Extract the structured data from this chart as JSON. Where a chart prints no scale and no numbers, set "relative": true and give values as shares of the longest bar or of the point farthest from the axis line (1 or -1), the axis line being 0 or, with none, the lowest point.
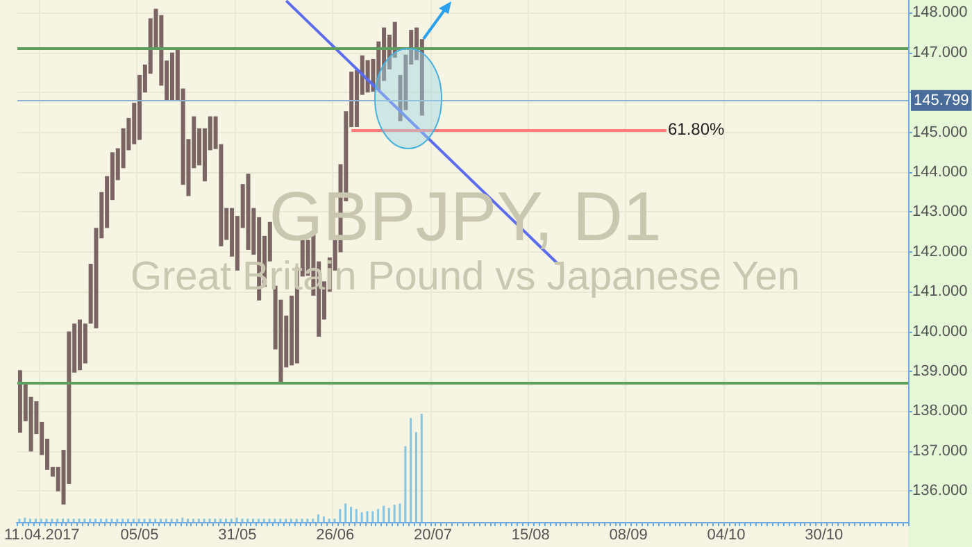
{
  "chart_data": [
    {
      "type": "bar",
      "title": "GBPJPY, D1",
      "subtitle": "Great Britain Pound vs Japanese Yen",
      "categories": [
        null,
        null,
        null,
        null,
        "11.04.2017",
        null,
        null,
        null,
        null,
        null,
        null,
        null,
        null,
        null,
        null,
        null,
        null,
        null,
        null,
        null,
        null,
        null,
        "05/05",
        null,
        null,
        null,
        null,
        null,
        null,
        null,
        null,
        null,
        null,
        null,
        null,
        null,
        null,
        null,
        null,
        null,
        "31/05",
        null,
        null,
        null,
        null,
        null,
        null,
        null,
        null,
        null,
        null,
        null,
        null,
        null,
        null,
        null,
        null,
        null,
        "26/06",
        null,
        null,
        null,
        null,
        null,
        null,
        null,
        null,
        null,
        null,
        null,
        null,
        null,
        null,
        null,
        null,
        null,
        "20/07",
        null,
        null,
        null,
        null,
        null,
        null,
        null,
        null,
        null,
        null,
        null,
        null,
        null,
        null,
        null,
        null,
        null,
        "15/08",
        null,
        null,
        null,
        null,
        null,
        null,
        null,
        null,
        null,
        null,
        null,
        null,
        null,
        null,
        null,
        null,
        null,
        "08/09",
        null,
        null,
        null,
        null,
        null,
        null,
        null,
        null,
        null,
        null,
        null,
        null,
        null,
        null,
        null,
        null,
        null,
        "04/10",
        null,
        null,
        null,
        null,
        null,
        null,
        null,
        null,
        null,
        null,
        null,
        null,
        null,
        null,
        null,
        null,
        null,
        "30/10",
        null,
        null,
        null,
        null,
        null,
        null,
        null,
        null,
        null,
        null,
        null,
        null,
        null,
        null,
        null
      ],
      "series": [
        {
          "color": "#7a6464",
          "base": [
            137.46,
            137.75,
            136.99,
            137.43,
            136.9,
            136.53,
            136.36,
            135.99,
            135.66,
            136.18,
            138.97,
            139.03,
            139.2,
            140.2,
            140.08,
            142.34,
            142.6,
            143.3,
            143.8,
            144.1,
            144.55,
            144.7,
            144.81,
            146.0,
            146.47,
            147.1,
            146.17,
            145.8,
            145.8,
            145.8,
            143.68,
            143.4,
            144.1,
            144.17,
            143.77,
            144.55,
            144.58,
            142.14,
            142.3,
            141.88,
            141.53,
            142.6,
            142.05,
            141.93,
            140.78,
            141.12,
            141.76,
            139.55,
            138.7,
            139.1,
            139.15,
            139.2,
            141.38,
            141.4,
            140.9,
            139.87,
            140.3,
            141.0,
            141.53,
            141.99,
            143.27,
            145.13,
            145.13,
            145.94,
            146.0,
            146.02,
            146.06,
            146.29,
            146.58,
            146.87,
            145.28,
            145.56,
            146.7,
            146.81,
            145.42,
            null,
            null,
            null,
            null,
            null,
            null,
            null,
            null,
            null,
            null,
            null,
            null,
            null,
            null,
            null,
            null,
            null,
            null,
            null,
            null,
            null,
            null,
            null,
            null,
            null,
            null,
            null,
            null,
            null,
            null,
            null,
            null,
            null,
            null,
            null,
            null,
            null,
            null,
            null,
            null,
            null,
            null,
            null,
            null,
            null,
            null,
            null,
            null,
            null,
            null,
            null,
            null,
            null,
            null,
            null,
            null,
            null,
            null,
            null,
            null,
            null,
            null,
            null,
            null,
            null,
            null,
            null,
            null,
            null,
            null,
            null,
            null,
            null,
            null,
            null,
            null,
            null,
            null,
            null,
            null,
            null,
            null,
            null,
            null,
            null,
            null,
            null,
            null,
            null
          ],
          "values": [
            1.57,
            0.95,
            1.37,
            0.82,
            0.83,
            0.78,
            0.24,
            0.61,
            1.37,
            3.82,
            1.23,
            1.27,
            1.0,
            1.5,
            2.52,
            1.16,
            1.3,
            1.2,
            0.8,
            1.0,
            0.81,
            1.04,
            1.63,
            0.7,
            1.39,
            1.0,
            1.77,
            1.0,
            1.2,
            1.3,
            2.42,
            1.43,
            1.3,
            0.93,
            1.33,
            0.85,
            0.82,
            2.56,
            0.8,
            1.22,
            1.37,
            1.1,
            1.91,
            1.17,
            2.09,
            1.28,
            0.99,
            1.6,
            2.1,
            1.3,
            1.75,
            2.4,
            0.92,
            0.9,
            1.6,
            1.89,
            0.96,
            0.86,
            0.81,
            2.21,
            2.26,
            1.39,
            1.43,
            0.99,
            0.81,
            0.82,
            1.22,
            1.34,
            0.87,
            0.9,
            1.16,
            1.39,
            0.87,
            0.82,
            1.92,
            null,
            null,
            null,
            null,
            null,
            null,
            null,
            null,
            null,
            null,
            null,
            null,
            null,
            null,
            null,
            null,
            null,
            null,
            null,
            null,
            null,
            null,
            null,
            null,
            null,
            null,
            null,
            null,
            null,
            null,
            null,
            null,
            null,
            null,
            null,
            null,
            null,
            null,
            null,
            null,
            null,
            null,
            null,
            null,
            null,
            null,
            null,
            null,
            null,
            null,
            null,
            null,
            null,
            null,
            null,
            null,
            null,
            null,
            null,
            null,
            null,
            null,
            null,
            null,
            null,
            null,
            null,
            null,
            null,
            null,
            null,
            null,
            null,
            null,
            null,
            null,
            null,
            null,
            null,
            null,
            null,
            null,
            null,
            null,
            null,
            null,
            null,
            null,
            null
          ]
        },
        {
          "type": "line",
          "color": "#5b6cf0",
          "values": [
            null,
            null,
            null,
            null,
            null,
            null,
            null,
            null,
            null,
            null,
            null,
            null,
            null,
            null,
            null,
            null,
            null,
            null,
            null,
            null,
            null,
            null,
            null,
            null,
            null,
            null,
            null,
            null,
            null,
            null,
            null,
            null,
            null,
            null,
            null,
            null,
            null,
            null,
            null,
            null,
            null,
            null,
            null,
            null,
            null,
            null,
            null,
            null,
            null,
            148.3,
            null,
            null,
            null,
            null,
            null,
            null,
            null,
            null,
            null,
            null,
            null,
            null,
            null,
            null,
            null,
            null,
            null,
            null,
            null,
            null,
            null,
            null,
            null,
            null,
            null,
            null,
            null,
            null,
            null,
            null,
            null,
            null,
            null,
            null,
            null,
            null,
            null,
            null,
            null,
            null,
            null,
            null,
            null,
            null,
            null,
            null,
            null,
            null,
            null,
            141.7,
            null,
            null,
            null,
            null,
            null,
            null,
            null,
            null,
            null,
            null,
            null,
            null,
            null,
            null,
            null,
            null,
            null,
            null,
            null,
            null,
            null,
            null,
            null,
            null,
            null,
            null,
            null,
            null,
            null,
            null,
            null,
            null,
            null,
            null,
            null,
            null,
            null,
            null,
            null,
            null,
            null,
            null,
            null,
            null,
            null,
            null,
            null,
            null,
            null,
            null,
            null,
            null,
            null,
            null,
            null,
            null,
            null,
            null,
            null,
            null,
            null,
            null,
            null,
            null
          ]
        }
      ],
      "ylim": [
        135.22,
        148.32
      ],
      "yticks": [
        {
          "value": 136,
          "label": "136.000"
        },
        {
          "value": 137,
          "label": "137.000"
        },
        {
          "value": 138,
          "label": "138.000"
        },
        {
          "value": 139,
          "label": "139.000"
        },
        {
          "value": 140,
          "label": "140.000"
        },
        {
          "value": 141,
          "label": "141.000"
        },
        {
          "value": 142,
          "label": "142.000"
        },
        {
          "value": 143,
          "label": "143.000"
        },
        {
          "value": 144,
          "label": "144.000"
        },
        {
          "value": 145,
          "label": "145.000"
        },
        {
          "value": 146,
          "label": null
        },
        {
          "value": 147,
          "label": "147.000"
        },
        {
          "value": 148,
          "label": "148.000"
        }
      ],
      "ref_lines": [
        {
          "axis": "y",
          "value": 147.1,
          "color": "#5e9e5e"
        },
        {
          "axis": "y",
          "value": 138.73,
          "color": "#5e9e5e"
        },
        {
          "axis": "y",
          "value": 145.799,
          "label": "145.799",
          "color": "#8fb0d0"
        },
        {
          "axis": "y",
          "value": 145.07,
          "color": "#ff7b7b"
        }
      ],
      "annotations": [
        "61.80%"
      ],
      "grid": true
    },
    {
      "type": "bar",
      "relative": true,
      "color": "#87c5e0",
      "categories": [
        null,
        null,
        null,
        null,
        null,
        null,
        null,
        null,
        null,
        null,
        null,
        null,
        null,
        null,
        null,
        null,
        null,
        null,
        null,
        null,
        null,
        null,
        null,
        null,
        null,
        null,
        null,
        null,
        null,
        null,
        null,
        null,
        null,
        null,
        null,
        null,
        null,
        null,
        null,
        null,
        null,
        null,
        null,
        null,
        null,
        null,
        null,
        null,
        null,
        null,
        null,
        null,
        null,
        null,
        null,
        null,
        null,
        null,
        null,
        null,
        null,
        null,
        null,
        null,
        null,
        null,
        null,
        null,
        null,
        null,
        null,
        null,
        null,
        null,
        null,
        null,
        null,
        null,
        null,
        null,
        null,
        null,
        null,
        null,
        null,
        null,
        null,
        null,
        null,
        null,
        null,
        null,
        null,
        null,
        null,
        null,
        null,
        null,
        null,
        null,
        null,
        null,
        null,
        null,
        null,
        null,
        null,
        null,
        null,
        null,
        null,
        null,
        null,
        null,
        null,
        null,
        null,
        null,
        null,
        null,
        null,
        null,
        null,
        null,
        null,
        null,
        null,
        null,
        null,
        null,
        null,
        null,
        null,
        null,
        null,
        null,
        null,
        null,
        null,
        null,
        null,
        null,
        null,
        null,
        null,
        null,
        null,
        null,
        null,
        null,
        null,
        null,
        null,
        null,
        null,
        null,
        null,
        null,
        null,
        null,
        null,
        null,
        null,
        null
      ],
      "values": [
        0.03,
        0.04,
        0.03,
        0.03,
        0.03,
        0.03,
        0.03,
        0.03,
        0.03,
        0.03,
        0.03,
        0.03,
        0.03,
        0.03,
        0.03,
        0.03,
        0.03,
        0.03,
        0.03,
        0.03,
        0.03,
        0.03,
        0.03,
        0.03,
        0.03,
        0.03,
        0.03,
        0.03,
        0.03,
        0.03,
        0.04,
        0.03,
        0.03,
        0.03,
        0.03,
        0.03,
        0.03,
        0.03,
        0.03,
        0.03,
        0.04,
        0.03,
        0.03,
        0.03,
        0.03,
        0.03,
        0.03,
        0.03,
        0.03,
        0.03,
        0.03,
        0.03,
        0.03,
        0.03,
        0.03,
        0.07,
        0.05,
        0.03,
        0.03,
        0.12,
        0.17,
        0.14,
        0.12,
        0.09,
        0.1,
        0.1,
        0.12,
        0.15,
        0.13,
        0.16,
        0.17,
        0.7,
        0.96,
        0.83,
        1,
        null,
        null,
        null,
        null,
        null,
        null,
        null,
        null,
        null,
        null,
        null,
        null,
        null,
        null,
        null,
        null,
        null,
        null,
        null,
        null,
        null,
        null,
        null,
        null,
        null,
        null,
        null,
        null,
        null,
        null,
        null,
        null,
        null,
        null,
        null,
        null,
        null,
        null,
        null,
        null,
        null,
        null,
        null,
        null,
        null,
        null,
        null,
        null,
        null,
        null,
        null,
        null,
        null,
        null,
        null,
        null,
        null,
        null,
        null,
        null,
        null,
        null,
        null,
        null,
        null,
        null,
        null,
        null,
        null,
        null,
        null,
        null,
        null,
        null,
        null,
        null,
        null,
        null,
        null,
        null,
        null,
        null,
        null,
        null,
        null,
        null,
        null,
        null,
        null
      ]
    }
  ]
}
